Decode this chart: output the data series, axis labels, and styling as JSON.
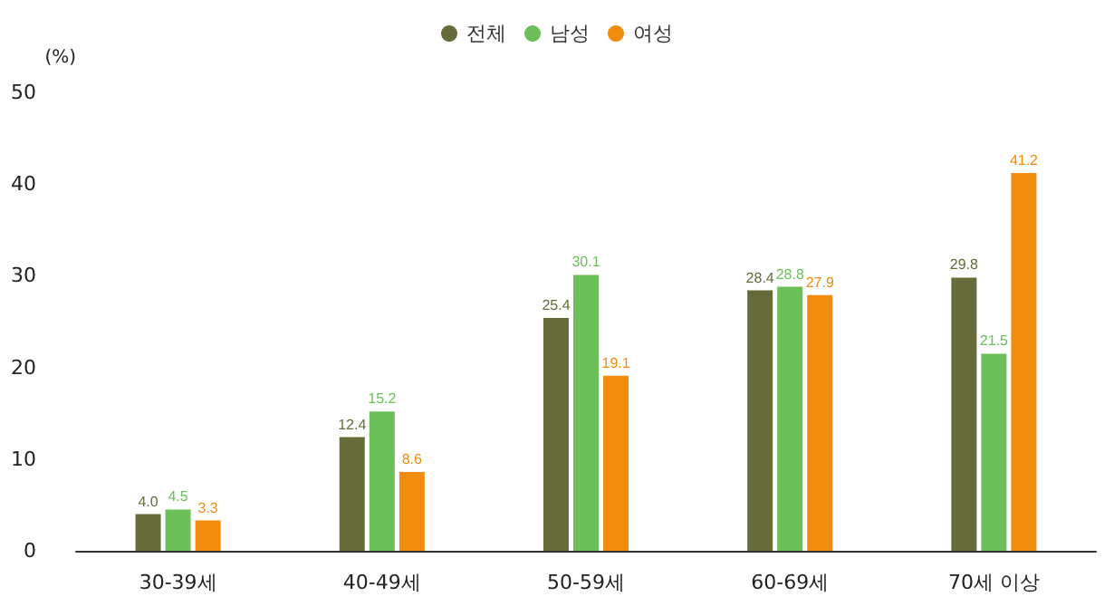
{
  "chart_data": {
    "type": "bar",
    "ylabel": "(%)",
    "categories": [
      "30-39세",
      "40-49세",
      "50-59세",
      "60-69세",
      "70세 이상"
    ],
    "series": [
      {
        "name": "전체",
        "color": "#676b3a",
        "values": [
          4.0,
          12.4,
          25.4,
          28.4,
          29.8
        ],
        "value_labels": [
          "4.0",
          "12.4",
          "25.4",
          "28.4",
          "29.8"
        ]
      },
      {
        "name": "남성",
        "color": "#6cbf59",
        "values": [
          4.5,
          15.2,
          30.1,
          28.8,
          21.5
        ],
        "value_labels": [
          "4.5",
          "15.2",
          "30.1",
          "28.8",
          "21.5"
        ]
      },
      {
        "name": "여성",
        "color": "#f28c0f",
        "values": [
          3.3,
          8.6,
          19.1,
          27.9,
          41.2
        ],
        "value_labels": [
          "3.3",
          "8.6",
          "19.1",
          "27.9",
          "41.2"
        ]
      }
    ],
    "ylim": [
      0,
      50
    ],
    "yticks": [
      0,
      10,
      20,
      30,
      40,
      50
    ],
    "grid": false,
    "legend": "top"
  }
}
